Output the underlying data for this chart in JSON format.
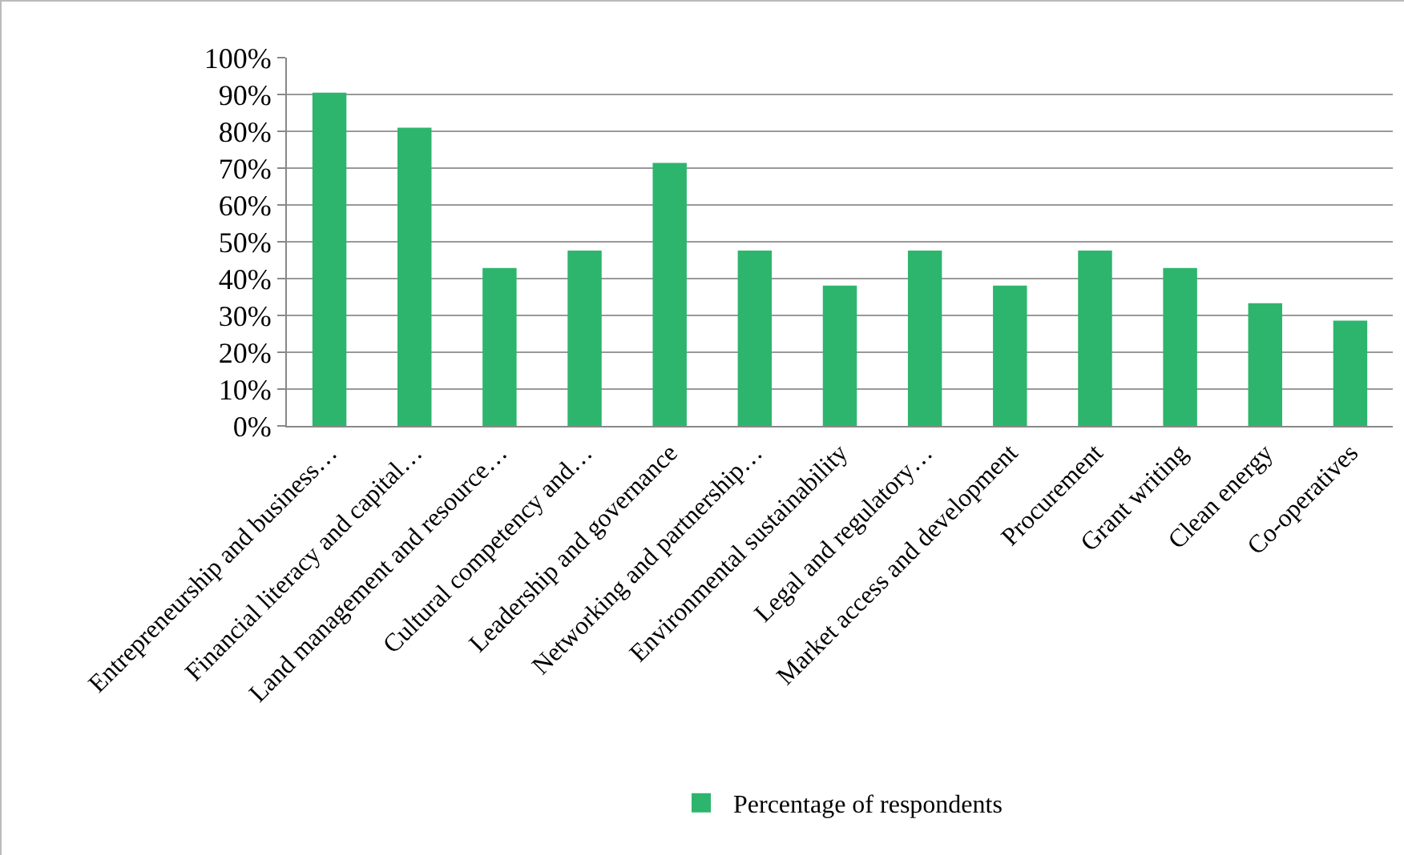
{
  "chart_data": {
    "type": "bar",
    "categories": [
      "Entrepreneurship and business…",
      "Financial literacy and capital…",
      "Land management and resource…",
      "Cultural competency and…",
      "Leadership and governance",
      "Networking and partnership…",
      "Environmental sustainability",
      "Legal and regulatory…",
      "Market access and development",
      "Procurement",
      "Grant writing",
      "Clean energy",
      "Co-operatives"
    ],
    "series": [
      {
        "name": "Percentage of respondents",
        "color": "#2db56d",
        "values": [
          90.5,
          81,
          42.9,
          47.6,
          71.4,
          47.6,
          38.1,
          47.6,
          38.1,
          47.6,
          42.9,
          33.3,
          28.6
        ]
      }
    ],
    "ylim": [
      0,
      100
    ],
    "yticks": [
      {
        "value": 0,
        "label": "0%"
      },
      {
        "value": 10,
        "label": "10%"
      },
      {
        "value": 20,
        "label": "20%"
      },
      {
        "value": 30,
        "label": "30%"
      },
      {
        "value": 40,
        "label": "40%"
      },
      {
        "value": 50,
        "label": "50%"
      },
      {
        "value": 60,
        "label": "60%"
      },
      {
        "value": 70,
        "label": "70%"
      },
      {
        "value": 80,
        "label": "80%"
      },
      {
        "value": 90,
        "label": "90%"
      },
      {
        "value": 100,
        "label": "100%"
      }
    ],
    "grid": "y",
    "legend": "bottom"
  }
}
